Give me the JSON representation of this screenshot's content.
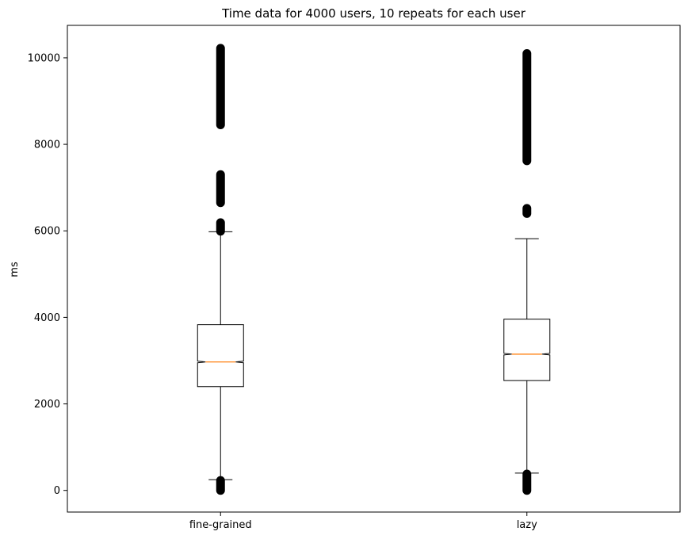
{
  "chart_data": {
    "type": "box",
    "title": "Time data for 4000 users, 10 repeats for each user",
    "xlabel": "",
    "ylabel": "ms",
    "ylim": [
      -500,
      10750
    ],
    "yticks": [
      0,
      2000,
      4000,
      6000,
      8000,
      10000
    ],
    "ytick_labels": [
      "0",
      "2000",
      "4000",
      "6000",
      "8000",
      "10000"
    ],
    "notched": true,
    "grid": false,
    "colors": {
      "box": "#000000",
      "median": "#ff7f0e",
      "outlier": "#000000"
    },
    "categories": [
      "fine-grained",
      "lazy"
    ],
    "boxes": [
      {
        "label": "fine-grained",
        "q1": 2400,
        "median": 2970,
        "q3": 3830,
        "notch_low": 2950,
        "notch_high": 2990,
        "whisker_low": 250,
        "whisker_high": 5980,
        "outlier_ranges": [
          [
            0,
            230
          ],
          [
            5990,
            6190
          ],
          [
            6650,
            7300
          ],
          [
            8450,
            10220
          ]
        ]
      },
      {
        "label": "lazy",
        "q1": 2540,
        "median": 3150,
        "q3": 3960,
        "notch_low": 3130,
        "notch_high": 3170,
        "whisker_low": 400,
        "whisker_high": 5820,
        "outlier_ranges": [
          [
            0,
            380
          ],
          [
            6400,
            6520
          ],
          [
            7620,
            10100
          ]
        ]
      }
    ]
  }
}
